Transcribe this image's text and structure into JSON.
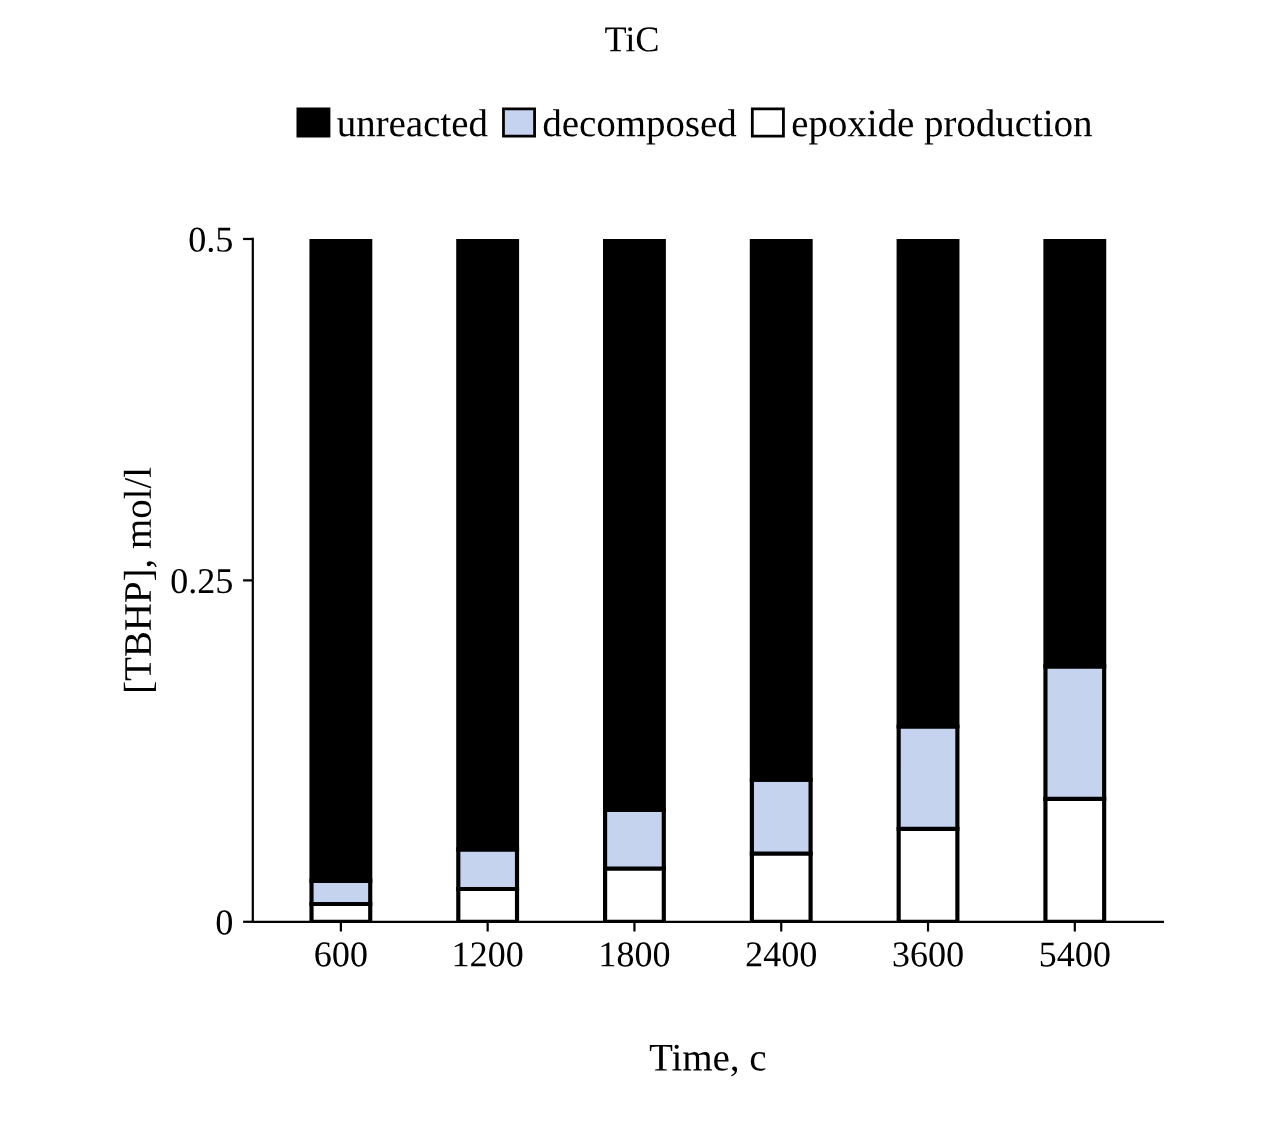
{
  "chart_data": {
    "type": "bar",
    "title": "TiC",
    "xlabel": "Time, c",
    "ylabel": "[TBHP], mol/l",
    "categories": [
      "600",
      "1200",
      "1800",
      "2400",
      "3600",
      "5400"
    ],
    "stacked": true,
    "series": [
      {
        "name": "epoxide production",
        "color": "#ffffff",
        "values": [
          0.013,
          0.024,
          0.039,
          0.05,
          0.068,
          0.09
        ]
      },
      {
        "name": "decomposed",
        "color": "#c5d3ee",
        "values": [
          0.017,
          0.029,
          0.043,
          0.054,
          0.075,
          0.097
        ]
      },
      {
        "name": "unreacted",
        "color": "#000000",
        "values": [
          0.47,
          0.447,
          0.418,
          0.396,
          0.357,
          0.313
        ]
      }
    ],
    "ylim": [
      0,
      0.5
    ],
    "yticks": [
      0,
      0.25,
      0.5
    ],
    "grid": false,
    "legend": "top"
  }
}
